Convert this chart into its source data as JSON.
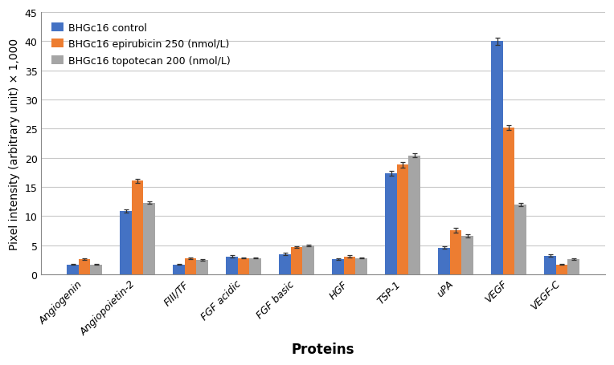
{
  "categories": [
    "Angiogenin",
    "Angiopoietin-2",
    "FIII/TF",
    "FGF acidic",
    "FGF basic",
    "HGF",
    "TSP-1",
    "uPA",
    "VEGF",
    "VEGF-C"
  ],
  "series": [
    {
      "label": "BHGc16 control",
      "color": "#4472C4",
      "values": [
        1.7,
        10.9,
        1.7,
        3.1,
        3.5,
        2.6,
        17.3,
        4.6,
        40.0,
        3.2
      ],
      "errors": [
        0.1,
        0.3,
        0.1,
        0.15,
        0.2,
        0.15,
        0.4,
        0.25,
        0.65,
        0.2
      ]
    },
    {
      "label": "BHGc16 epirubicin 250 (nmol/L)",
      "color": "#ED7D31",
      "values": [
        2.6,
        16.1,
        2.8,
        2.8,
        4.7,
        3.1,
        18.8,
        7.6,
        25.2,
        1.7
      ],
      "errors": [
        0.15,
        0.35,
        0.12,
        0.1,
        0.18,
        0.15,
        0.45,
        0.4,
        0.45,
        0.08
      ]
    },
    {
      "label": "BHGc16 topotecan 200 (nmol/L)",
      "color": "#A5A5A5",
      "values": [
        1.7,
        12.3,
        2.5,
        2.8,
        5.0,
        2.8,
        20.4,
        6.6,
        12.0,
        2.6
      ],
      "errors": [
        0.08,
        0.25,
        0.12,
        0.08,
        0.12,
        0.1,
        0.35,
        0.28,
        0.25,
        0.12
      ]
    }
  ],
  "xlabel": "Proteins",
  "ylabel": "Pixel intensity (arbitrary unit) × 1,000",
  "ylim": [
    0,
    45
  ],
  "yticks": [
    0,
    5,
    10,
    15,
    20,
    25,
    30,
    35,
    40,
    45
  ],
  "bar_width": 0.22,
  "grid_color": "#C8C8C8",
  "background_color": "#FFFFFF",
  "axis_fontsize": 11,
  "legend_fontsize": 9,
  "tick_fontsize": 9,
  "xlabel_fontsize": 12,
  "ylabel_fontsize": 10
}
